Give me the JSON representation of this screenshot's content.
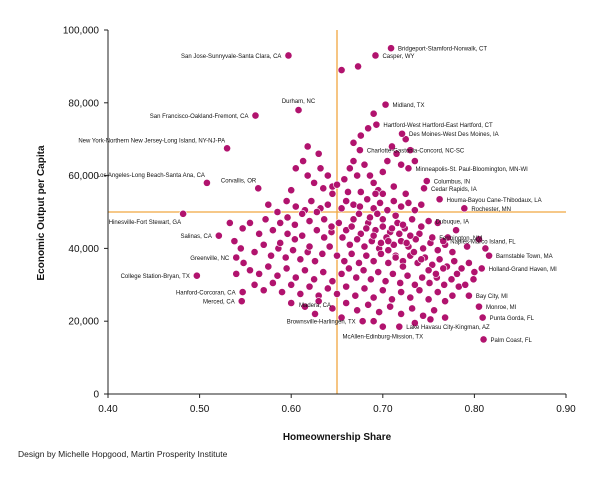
{
  "colors": {
    "point": "#b1136e",
    "reference_line": "#f0a640",
    "axis": "#222222",
    "text": "#111111"
  },
  "credit": "Design by Michelle Hopgood, Martin Prosperity Institute",
  "chart_data": {
    "type": "scatter",
    "title": "",
    "xlabel": "Homeownership Share",
    "ylabel": "Economic Output per Capita",
    "xlim": [
      0.4,
      0.9
    ],
    "ylim": [
      0,
      100000
    ],
    "x_ticks": [
      0.4,
      0.5,
      0.6,
      0.7,
      0.8,
      0.9
    ],
    "x_tick_labels": [
      "0.40",
      "0.50",
      "0.60",
      "0.70",
      "0.80",
      "0.90"
    ],
    "y_ticks": [
      0,
      20000,
      40000,
      60000,
      80000,
      100000
    ],
    "y_tick_labels": [
      "0",
      "20,000",
      "40,000",
      "60,000",
      "80,000",
      "100,000"
    ],
    "grid": false,
    "reference_lines": {
      "x": 0.65,
      "y": 50000
    },
    "labeled_points": [
      {
        "name": "Bridgeport-Stamford-Norwalk, CT",
        "x": 0.709,
        "y": 95000,
        "side": "right"
      },
      {
        "name": "Casper, WY",
        "x": 0.692,
        "y": 93000,
        "side": "right"
      },
      {
        "name": "San Jose-Sunnyvale-Santa Clara, CA",
        "x": 0.597,
        "y": 93000,
        "side": "left"
      },
      {
        "name": "Durham, NC",
        "x": 0.608,
        "y": 78000,
        "side": "above"
      },
      {
        "name": "Midland, TX",
        "x": 0.703,
        "y": 79500,
        "side": "right"
      },
      {
        "name": "San Francisco-Oakland-Fremont, CA",
        "x": 0.561,
        "y": 76500,
        "side": "left"
      },
      {
        "name": "Hartford-West Hartford-East Hartford, CT",
        "x": 0.693,
        "y": 74000,
        "side": "right"
      },
      {
        "name": "Des Moines-West Des Moines, IA",
        "x": 0.721,
        "y": 71500,
        "side": "right"
      },
      {
        "name": "New York-Northern New Jersey-Long Island, NY-NJ-PA",
        "x": 0.53,
        "y": 67500,
        "side": "above-left"
      },
      {
        "name": "Charlotte-Gastonia-Concord, NC-SC",
        "x": 0.675,
        "y": 67000,
        "side": "right"
      },
      {
        "name": "Minneapolis-St. Paul-Bloomington, MN-WI",
        "x": 0.728,
        "y": 62000,
        "side": "right"
      },
      {
        "name": "Los Angeles-Long Beach-Santa Ana, CA",
        "x": 0.508,
        "y": 58000,
        "side": "above-left"
      },
      {
        "name": "Columbus, IN",
        "x": 0.748,
        "y": 58500,
        "side": "right"
      },
      {
        "name": "Cedar Rapids, IA",
        "x": 0.745,
        "y": 56500,
        "side": "right"
      },
      {
        "name": "Corvallis, OR",
        "x": 0.564,
        "y": 56500,
        "side": "above-left"
      },
      {
        "name": "Houma-Bayou Cane-Thibodaux, LA",
        "x": 0.762,
        "y": 53500,
        "side": "right"
      },
      {
        "name": "Rochester, MN",
        "x": 0.789,
        "y": 51000,
        "side": "right"
      },
      {
        "name": "Hinesville-Fort Stewart, GA",
        "x": 0.482,
        "y": 49500,
        "side": "below-left"
      },
      {
        "name": "Dubuque, IA",
        "x": 0.75,
        "y": 47500,
        "side": "right"
      },
      {
        "name": "Salinas, CA",
        "x": 0.521,
        "y": 43500,
        "side": "left"
      },
      {
        "name": "Fermington, NM",
        "x": 0.754,
        "y": 43000,
        "side": "right"
      },
      {
        "name": "Naples-Marco Island, FL",
        "x": 0.766,
        "y": 42000,
        "side": "right"
      },
      {
        "name": "Greenville, NC",
        "x": 0.54,
        "y": 37500,
        "side": "left"
      },
      {
        "name": "Barnstable Town, MA",
        "x": 0.816,
        "y": 38000,
        "side": "right"
      },
      {
        "name": "College Station-Bryan, TX",
        "x": 0.497,
        "y": 32500,
        "side": "left"
      },
      {
        "name": "Holland-Grand Haven, MI",
        "x": 0.808,
        "y": 34500,
        "side": "right"
      },
      {
        "name": "Hanford-Corcoran, CA",
        "x": 0.547,
        "y": 28000,
        "side": "left"
      },
      {
        "name": "Bay City, MI",
        "x": 0.794,
        "y": 27000,
        "side": "right"
      },
      {
        "name": "Merced, CA",
        "x": 0.546,
        "y": 25500,
        "side": "left"
      },
      {
        "name": "Monroe, MI",
        "x": 0.805,
        "y": 24000,
        "side": "right"
      },
      {
        "name": "Madera, CA",
        "x": 0.626,
        "y": 22000,
        "side": "above"
      },
      {
        "name": "Punta Gorda, FL",
        "x": 0.809,
        "y": 21000,
        "side": "right"
      },
      {
        "name": "Brownsville-Harlingen, TX",
        "x": 0.678,
        "y": 20000,
        "side": "left"
      },
      {
        "name": "Lake Havasu City-Kingman, AZ",
        "x": 0.718,
        "y": 18500,
        "side": "right"
      },
      {
        "name": "McAllen-Edinburg-Mission, TX",
        "x": 0.7,
        "y": 18500,
        "side": "below"
      },
      {
        "name": "Palm Coast, FL",
        "x": 0.81,
        "y": 15000,
        "side": "right"
      }
    ],
    "points": [
      [
        0.6,
        56000
      ],
      [
        0.605,
        62000
      ],
      [
        0.613,
        64000
      ],
      [
        0.618,
        60000
      ],
      [
        0.625,
        58000
      ],
      [
        0.632,
        62000
      ],
      [
        0.64,
        60000
      ],
      [
        0.645,
        57000
      ],
      [
        0.658,
        59000
      ],
      [
        0.664,
        62000
      ],
      [
        0.668,
        64000
      ],
      [
        0.672,
        60000
      ],
      [
        0.68,
        63000
      ],
      [
        0.686,
        60000
      ],
      [
        0.69,
        58000
      ],
      [
        0.695,
        56000
      ],
      [
        0.7,
        61000
      ],
      [
        0.705,
        64000
      ],
      [
        0.71,
        68000
      ],
      [
        0.715,
        66000
      ],
      [
        0.72,
        63000
      ],
      [
        0.725,
        70000
      ],
      [
        0.73,
        67000
      ],
      [
        0.735,
        64000
      ],
      [
        0.684,
        73000
      ],
      [
        0.676,
        71000
      ],
      [
        0.668,
        69000
      ],
      [
        0.69,
        77000
      ],
      [
        0.673,
        90000
      ],
      [
        0.655,
        89000
      ],
      [
        0.63,
        66000
      ],
      [
        0.618,
        68000
      ],
      [
        0.575,
        52000
      ],
      [
        0.585,
        50000
      ],
      [
        0.595,
        53000
      ],
      [
        0.605,
        51500
      ],
      [
        0.615,
        50500
      ],
      [
        0.622,
        53000
      ],
      [
        0.632,
        51000
      ],
      [
        0.64,
        52000
      ],
      [
        0.655,
        51000
      ],
      [
        0.66,
        53000
      ],
      [
        0.668,
        52000
      ],
      [
        0.675,
        51500
      ],
      [
        0.683,
        53500
      ],
      [
        0.69,
        51000
      ],
      [
        0.697,
        52500
      ],
      [
        0.705,
        50500
      ],
      [
        0.712,
        53000
      ],
      [
        0.72,
        51500
      ],
      [
        0.728,
        52500
      ],
      [
        0.735,
        50500
      ],
      [
        0.742,
        52000
      ],
      [
        0.7,
        55000
      ],
      [
        0.712,
        57000
      ],
      [
        0.725,
        55000
      ],
      [
        0.555,
        47000
      ],
      [
        0.565,
        44000
      ],
      [
        0.572,
        48000
      ],
      [
        0.58,
        45000
      ],
      [
        0.588,
        47000
      ],
      [
        0.596,
        44000
      ],
      [
        0.604,
        46500
      ],
      [
        0.612,
        43500
      ],
      [
        0.62,
        47500
      ],
      [
        0.628,
        45000
      ],
      [
        0.636,
        48000
      ],
      [
        0.644,
        44500
      ],
      [
        0.652,
        47000
      ],
      [
        0.66,
        45000
      ],
      [
        0.668,
        48000
      ],
      [
        0.676,
        44000
      ],
      [
        0.684,
        47000
      ],
      [
        0.692,
        45000
      ],
      [
        0.7,
        48000
      ],
      [
        0.708,
        44500
      ],
      [
        0.716,
        47000
      ],
      [
        0.724,
        45500
      ],
      [
        0.732,
        48000
      ],
      [
        0.74,
        44000
      ],
      [
        0.656,
        43000
      ],
      [
        0.664,
        41000
      ],
      [
        0.672,
        42500
      ],
      [
        0.68,
        40500
      ],
      [
        0.688,
        42000
      ],
      [
        0.696,
        40000
      ],
      [
        0.704,
        43000
      ],
      [
        0.712,
        41000
      ],
      [
        0.72,
        42000
      ],
      [
        0.728,
        40500
      ],
      [
        0.736,
        42500
      ],
      [
        0.744,
        40000
      ],
      [
        0.752,
        41500
      ],
      [
        0.76,
        39500
      ],
      [
        0.768,
        41000
      ],
      [
        0.776,
        39000
      ],
      [
        0.545,
        40000
      ],
      [
        0.56,
        39000
      ],
      [
        0.57,
        41000
      ],
      [
        0.578,
        38000
      ],
      [
        0.586,
        40000
      ],
      [
        0.594,
        37500
      ],
      [
        0.602,
        39500
      ],
      [
        0.61,
        37000
      ],
      [
        0.618,
        39000
      ],
      [
        0.626,
        36500
      ],
      [
        0.634,
        38500
      ],
      [
        0.642,
        40500
      ],
      [
        0.65,
        38000
      ],
      [
        0.658,
        36500
      ],
      [
        0.666,
        38500
      ],
      [
        0.674,
        36000
      ],
      [
        0.682,
        38000
      ],
      [
        0.69,
        36500
      ],
      [
        0.698,
        38500
      ],
      [
        0.706,
        36000
      ],
      [
        0.714,
        38000
      ],
      [
        0.722,
        36500
      ],
      [
        0.73,
        38000
      ],
      [
        0.738,
        36000
      ],
      [
        0.746,
        37500
      ],
      [
        0.754,
        35500
      ],
      [
        0.762,
        37000
      ],
      [
        0.77,
        35000
      ],
      [
        0.778,
        36500
      ],
      [
        0.786,
        34500
      ],
      [
        0.794,
        36000
      ],
      [
        0.8,
        33500
      ],
      [
        0.555,
        34000
      ],
      [
        0.565,
        33000
      ],
      [
        0.575,
        35000
      ],
      [
        0.585,
        32500
      ],
      [
        0.595,
        34500
      ],
      [
        0.605,
        32000
      ],
      [
        0.615,
        34000
      ],
      [
        0.625,
        31500
      ],
      [
        0.635,
        33500
      ],
      [
        0.645,
        31000
      ],
      [
        0.655,
        33000
      ],
      [
        0.663,
        34500
      ],
      [
        0.671,
        32000
      ],
      [
        0.679,
        34000
      ],
      [
        0.687,
        31500
      ],
      [
        0.695,
        33500
      ],
      [
        0.703,
        31000
      ],
      [
        0.711,
        33000
      ],
      [
        0.719,
        30500
      ],
      [
        0.727,
        32500
      ],
      [
        0.735,
        30000
      ],
      [
        0.743,
        32000
      ],
      [
        0.751,
        30500
      ],
      [
        0.759,
        32000
      ],
      [
        0.767,
        30000
      ],
      [
        0.775,
        31500
      ],
      [
        0.783,
        29500
      ],
      [
        0.56,
        30000
      ],
      [
        0.57,
        28500
      ],
      [
        0.58,
        30500
      ],
      [
        0.59,
        28000
      ],
      [
        0.6,
        30000
      ],
      [
        0.61,
        27500
      ],
      [
        0.62,
        29500
      ],
      [
        0.63,
        27000
      ],
      [
        0.64,
        29000
      ],
      [
        0.65,
        27500
      ],
      [
        0.66,
        29500
      ],
      [
        0.67,
        27000
      ],
      [
        0.68,
        29000
      ],
      [
        0.69,
        26500
      ],
      [
        0.7,
        28500
      ],
      [
        0.71,
        26000
      ],
      [
        0.72,
        28000
      ],
      [
        0.73,
        26500
      ],
      [
        0.74,
        28500
      ],
      [
        0.75,
        26000
      ],
      [
        0.76,
        28000
      ],
      [
        0.768,
        25500
      ],
      [
        0.6,
        25000
      ],
      [
        0.615,
        24000
      ],
      [
        0.63,
        25500
      ],
      [
        0.645,
        23500
      ],
      [
        0.66,
        25000
      ],
      [
        0.672,
        23000
      ],
      [
        0.684,
        24500
      ],
      [
        0.696,
        22500
      ],
      [
        0.708,
        24000
      ],
      [
        0.72,
        22000
      ],
      [
        0.732,
        23500
      ],
      [
        0.744,
        21500
      ],
      [
        0.756,
        23000
      ],
      [
        0.768,
        21000
      ],
      [
        0.69,
        20000
      ],
      [
        0.655,
        21000
      ],
      [
        0.735,
        19500
      ],
      [
        0.752,
        20500
      ],
      [
        0.533,
        47000
      ],
      [
        0.547,
        45500
      ],
      [
        0.538,
        42000
      ],
      [
        0.548,
        36000
      ],
      [
        0.54,
        33000
      ],
      [
        0.662,
        55500
      ],
      [
        0.65,
        57500
      ],
      [
        0.645,
        55000
      ],
      [
        0.635,
        56500
      ],
      [
        0.7,
        46000
      ],
      [
        0.706,
        42000
      ],
      [
        0.714,
        49000
      ],
      [
        0.722,
        46500
      ],
      [
        0.73,
        43500
      ],
      [
        0.742,
        46000
      ],
      [
        0.76,
        47000
      ],
      [
        0.771,
        43000
      ],
      [
        0.78,
        45000
      ],
      [
        0.792,
        40500
      ],
      [
        0.805,
        42500
      ],
      [
        0.812,
        40000
      ],
      [
        0.781,
        33000
      ],
      [
        0.79,
        30000
      ],
      [
        0.799,
        31500
      ],
      [
        0.776,
        27000
      ],
      [
        0.692,
        55000
      ],
      [
        0.676,
        55500
      ],
      [
        0.686,
        48500
      ],
      [
        0.694,
        49500
      ],
      [
        0.71,
        45500
      ],
      [
        0.718,
        44000
      ],
      [
        0.726,
        41500
      ],
      [
        0.734,
        39000
      ],
      [
        0.742,
        37000
      ],
      [
        0.75,
        34000
      ],
      [
        0.758,
        33000
      ],
      [
        0.766,
        34500
      ],
      [
        0.666,
        46000
      ],
      [
        0.674,
        49500
      ],
      [
        0.682,
        45500
      ],
      [
        0.69,
        43500
      ],
      [
        0.698,
        41500
      ],
      [
        0.706,
        39500
      ],
      [
        0.714,
        37500
      ],
      [
        0.722,
        35000
      ],
      [
        0.588,
        41500
      ],
      [
        0.596,
        48500
      ],
      [
        0.604,
        42500
      ],
      [
        0.612,
        49500
      ],
      [
        0.62,
        40500
      ],
      [
        0.628,
        50000
      ],
      [
        0.636,
        43000
      ],
      [
        0.644,
        46000
      ]
    ]
  }
}
